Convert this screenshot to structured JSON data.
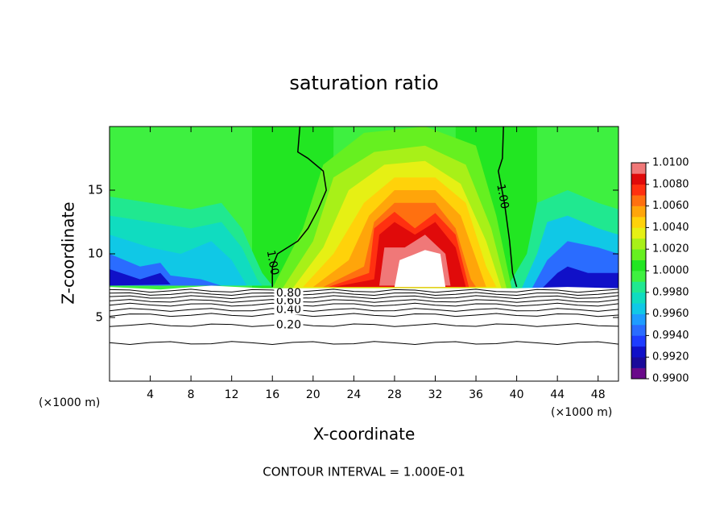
{
  "chart_data": {
    "type": "contour",
    "title": "saturation ratio",
    "xlabel": "X-coordinate",
    "ylabel": "Z-coordinate",
    "xunit": "(×1000 m)",
    "xlim": [
      0,
      50
    ],
    "xticks": [
      4,
      8,
      12,
      16,
      20,
      24,
      28,
      32,
      36,
      40,
      44,
      48
    ],
    "ylim": [
      0,
      20
    ],
    "yticks": [
      5,
      10,
      15
    ],
    "colorbar": {
      "lim": [
        0.99,
        1.01
      ],
      "ticks": [
        {
          "value": 0.99,
          "label": "0.9900"
        },
        {
          "value": 0.992,
          "label": "0.9920"
        },
        {
          "value": 0.994,
          "label": "0.9940"
        },
        {
          "value": 0.996,
          "label": "0.9960"
        },
        {
          "value": 0.998,
          "label": "0.9980"
        },
        {
          "value": 1.0,
          "label": "1.0000"
        },
        {
          "value": 1.002,
          "label": "1.0020"
        },
        {
          "value": 1.004,
          "label": "1.0040"
        },
        {
          "value": 1.006,
          "label": "1.0060"
        },
        {
          "value": 1.008,
          "label": "1.0080"
        },
        {
          "value": 1.01,
          "label": "1.0100"
        }
      ],
      "colors": [
        "#6a0a8a",
        "#1a0a9a",
        "#1010c8",
        "#1e3cff",
        "#2a6cff",
        "#1e9cff",
        "#10c8e6",
        "#10dcc0",
        "#20e890",
        "#3ef040",
        "#22e622",
        "#66f020",
        "#a8f018",
        "#e6f014",
        "#ffd20a",
        "#ffa50a",
        "#ff7010",
        "#ff3010",
        "#e00a0a",
        "#f07878"
      ]
    },
    "contour_levels": [
      {
        "value": 0.2,
        "label": "0.20"
      },
      {
        "value": 0.4,
        "label": "0.40"
      },
      {
        "value": 0.6,
        "label": "0.60"
      },
      {
        "value": 0.8,
        "label": "0.80"
      },
      {
        "value": 1.0,
        "label": "1.00"
      }
    ],
    "note": "CONTOUR INTERVAL = 1.000E-01"
  }
}
